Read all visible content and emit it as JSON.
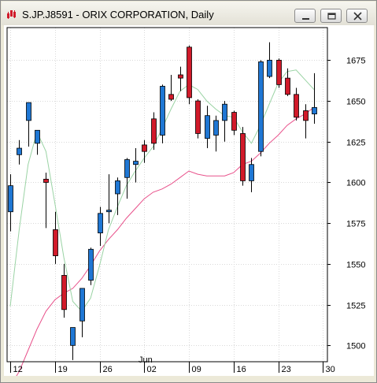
{
  "window": {
    "title": "S.JP.J8591 - ORIX CORPORATION, Daily"
  },
  "colors": {
    "up": "#1f77d4",
    "down": "#d11a2a",
    "ma_short": "#9ad3a4",
    "ma_long": "#e8508a",
    "grid": "#d9d9d9"
  },
  "chart_data": {
    "type": "candlestick",
    "ylim": [
      1490,
      1695
    ],
    "y_ticks": [
      1500,
      1525,
      1550,
      1575,
      1600,
      1625,
      1650,
      1675
    ],
    "x_tick_labels": [
      {
        "label": "12",
        "bar": 0
      },
      {
        "label": "19",
        "bar": 5
      },
      {
        "label": "26",
        "bar": 10
      },
      {
        "label": "02",
        "bar": 15
      },
      {
        "label": "09",
        "bar": 20
      },
      {
        "label": "16",
        "bar": 25
      },
      {
        "label": "23",
        "bar": 30
      },
      {
        "label": "30",
        "bar": 35
      }
    ],
    "month_label": {
      "label": "Jun",
      "bar": 15.5
    },
    "grid": true,
    "candles": [
      {
        "o": 1582,
        "h": 1605,
        "l": 1570,
        "c": 1598
      },
      {
        "o": 1617,
        "h": 1626,
        "l": 1611,
        "c": 1621
      },
      {
        "o": 1638,
        "h": 1648,
        "l": 1622,
        "c": 1649
      },
      {
        "o": 1624,
        "h": 1631,
        "l": 1617,
        "c": 1632
      },
      {
        "o": 1602,
        "h": 1606,
        "l": 1572,
        "c": 1600
      },
      {
        "o": 1571,
        "h": 1582,
        "l": 1550,
        "c": 1555
      },
      {
        "o": 1543,
        "h": 1550,
        "l": 1517,
        "c": 1522
      },
      {
        "o": 1500,
        "h": 1510,
        "l": 1491,
        "c": 1511
      },
      {
        "o": 1515,
        "h": 1535,
        "l": 1505,
        "c": 1535
      },
      {
        "o": 1540,
        "h": 1560,
        "l": 1537,
        "c": 1559
      },
      {
        "o": 1569,
        "h": 1585,
        "l": 1561,
        "c": 1581
      },
      {
        "o": 1582,
        "h": 1605,
        "l": 1575,
        "c": 1583
      },
      {
        "o": 1593,
        "h": 1603,
        "l": 1580,
        "c": 1601
      },
      {
        "o": 1603,
        "h": 1615,
        "l": 1590,
        "c": 1614
      },
      {
        "o": 1611,
        "h": 1621,
        "l": 1600,
        "c": 1613
      },
      {
        "o": 1623,
        "h": 1626,
        "l": 1612,
        "c": 1619
      },
      {
        "o": 1639,
        "h": 1643,
        "l": 1620,
        "c": 1624
      },
      {
        "o": 1629,
        "h": 1660,
        "l": 1624,
        "c": 1659
      },
      {
        "o": 1654,
        "h": 1666,
        "l": 1650,
        "c": 1651
      },
      {
        "o": 1666,
        "h": 1671,
        "l": 1656,
        "c": 1664
      },
      {
        "o": 1683,
        "h": 1684,
        "l": 1648,
        "c": 1652
      },
      {
        "o": 1650,
        "h": 1651,
        "l": 1627,
        "c": 1630
      },
      {
        "o": 1627,
        "h": 1647,
        "l": 1621,
        "c": 1641
      },
      {
        "o": 1629,
        "h": 1641,
        "l": 1619,
        "c": 1638
      },
      {
        "o": 1638,
        "h": 1650,
        "l": 1625,
        "c": 1648
      },
      {
        "o": 1643,
        "h": 1644,
        "l": 1629,
        "c": 1632
      },
      {
        "o": 1630,
        "h": 1634,
        "l": 1598,
        "c": 1601
      },
      {
        "o": 1601,
        "h": 1615,
        "l": 1594,
        "c": 1611
      },
      {
        "o": 1619,
        "h": 1675,
        "l": 1616,
        "c": 1674
      },
      {
        "o": 1665,
        "h": 1686,
        "l": 1664,
        "c": 1675
      },
      {
        "o": 1675,
        "h": 1676,
        "l": 1658,
        "c": 1660
      },
      {
        "o": 1664,
        "h": 1670,
        "l": 1653,
        "c": 1654
      },
      {
        "o": 1654,
        "h": 1658,
        "l": 1638,
        "c": 1640
      },
      {
        "o": 1644,
        "h": 1648,
        "l": 1627,
        "c": 1638
      },
      {
        "o": 1642,
        "h": 1667,
        "l": 1636,
        "c": 1646
      }
    ],
    "ma_short": [
      1524,
      1571,
      1611,
      1631,
      1619,
      1587,
      1554,
      1527,
      1521,
      1529,
      1549,
      1571,
      1585,
      1598,
      1607,
      1615,
      1622,
      1633,
      1645,
      1656,
      1660,
      1657,
      1650,
      1645,
      1641,
      1640,
      1631,
      1624,
      1635,
      1648,
      1661,
      1668,
      1669,
      1663,
      1657
    ],
    "ma_long": [
      1475,
      1484,
      1497,
      1510,
      1521,
      1528,
      1532,
      1535,
      1541,
      1549,
      1558,
      1565,
      1571,
      1578,
      1584,
      1590,
      1594,
      1596,
      1599,
      1603,
      1607,
      1605,
      1604,
      1604,
      1604,
      1606,
      1611,
      1613,
      1618,
      1624,
      1629,
      1635,
      1639,
      1642,
      1646
    ]
  }
}
